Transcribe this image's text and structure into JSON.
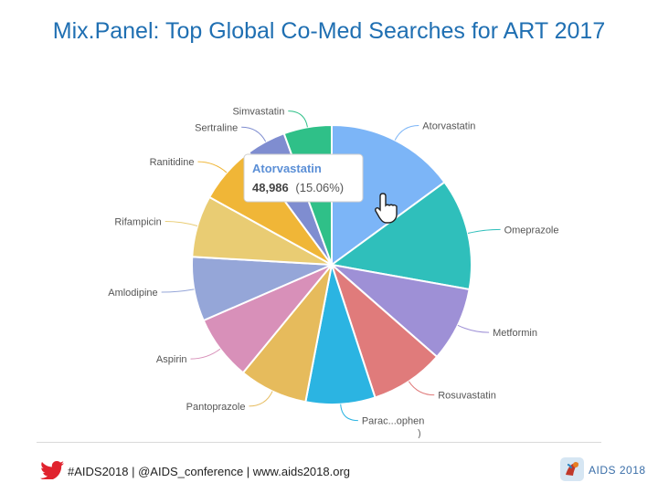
{
  "slide": {
    "title": "Mix.Panel: Top Global Co-Med Searches for ART 2017"
  },
  "chart_data": {
    "type": "pie",
    "title": "",
    "labels": [
      "Atorvastatin",
      "Omeprazole",
      "Metformin",
      "Rosuvastatin",
      "Parac...ophen",
      "Pantoprazole",
      "Aspirin",
      "Amlodipine",
      "Rifampicin",
      "Ranitidine",
      "Sertraline",
      "Simvastatin"
    ],
    "values": [
      15.06,
      13.0,
      8.7,
      8.6,
      8.1,
      8.0,
      7.6,
      7.5,
      7.2,
      6.9,
      4.6,
      5.6
    ],
    "colors": [
      "#7cb5f7",
      "#2fbfbb",
      "#9e90d6",
      "#e07b7b",
      "#2bb4e2",
      "#e6bb5c",
      "#d890b9",
      "#95a6d8",
      "#e9cc73",
      "#f0b637",
      "#7f8dd0",
      "#2fc088"
    ],
    "tooltip": {
      "name": "Atorvastatin",
      "count": "48,986",
      "percent": "(15.06%)"
    },
    "truncated_label_suffix": ")"
  },
  "footer": {
    "text": "#AIDS2018 | @AIDS_conference | www.aids2018.org",
    "bird_icon": "twitter-bird-icon",
    "bird_color": "#e0232e",
    "logo_text": "AIDS 2018",
    "logo_icon": "aids2018-logo-icon"
  }
}
